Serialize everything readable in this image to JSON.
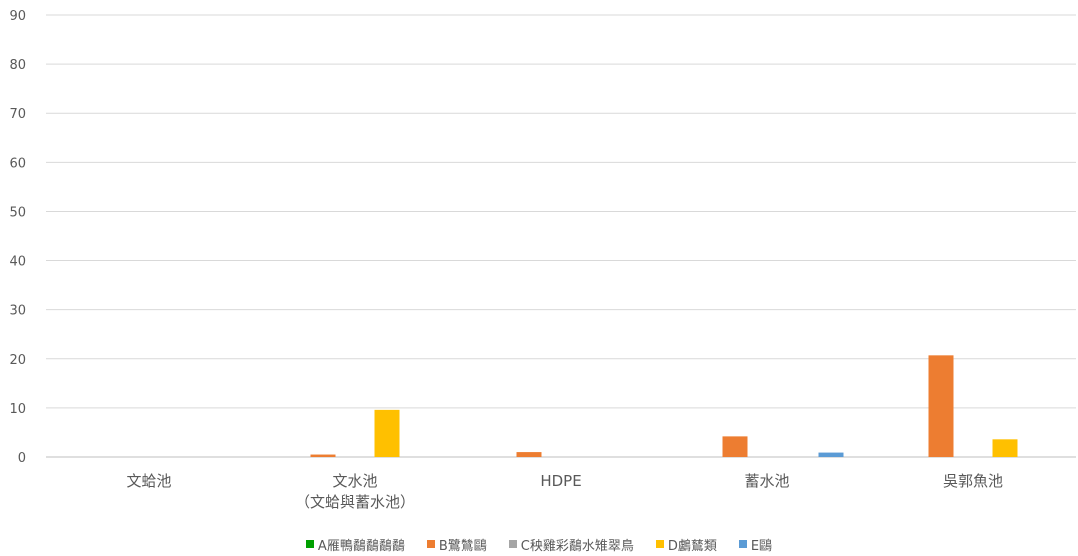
{
  "chart_data": {
    "type": "bar",
    "categories": [
      "文蛤池",
      "文水池\n（文蛤與蓄水池）",
      "HDPE",
      "蓄水池",
      "吳郭魚池"
    ],
    "ylim": [
      0,
      90
    ],
    "yticks": [
      0,
      10,
      20,
      30,
      40,
      50,
      60,
      70,
      80,
      90
    ],
    "grid": true,
    "legend_position": "bottom",
    "series": [
      {
        "name": "A雁鴨鷸鷸鷸鷸",
        "color": "#00A000",
        "values": [
          0,
          0,
          0,
          0,
          0
        ]
      },
      {
        "name": "B鷺鷥鷗",
        "color": "#ED7D31",
        "values": [
          0,
          0.5,
          1,
          4.2,
          20.7
        ]
      },
      {
        "name": "C秧雞彩鷸水雉翠鳥",
        "color": "#A5A5A5",
        "values": [
          0,
          0,
          0,
          0,
          0
        ]
      },
      {
        "name": "D鸕鶿類",
        "color": "#FFC000",
        "values": [
          0,
          9.6,
          0,
          0,
          3.6
        ]
      },
      {
        "name": "E鷗",
        "color": "#5B9BD5",
        "values": [
          0,
          0,
          0,
          0.9,
          0
        ]
      }
    ]
  }
}
